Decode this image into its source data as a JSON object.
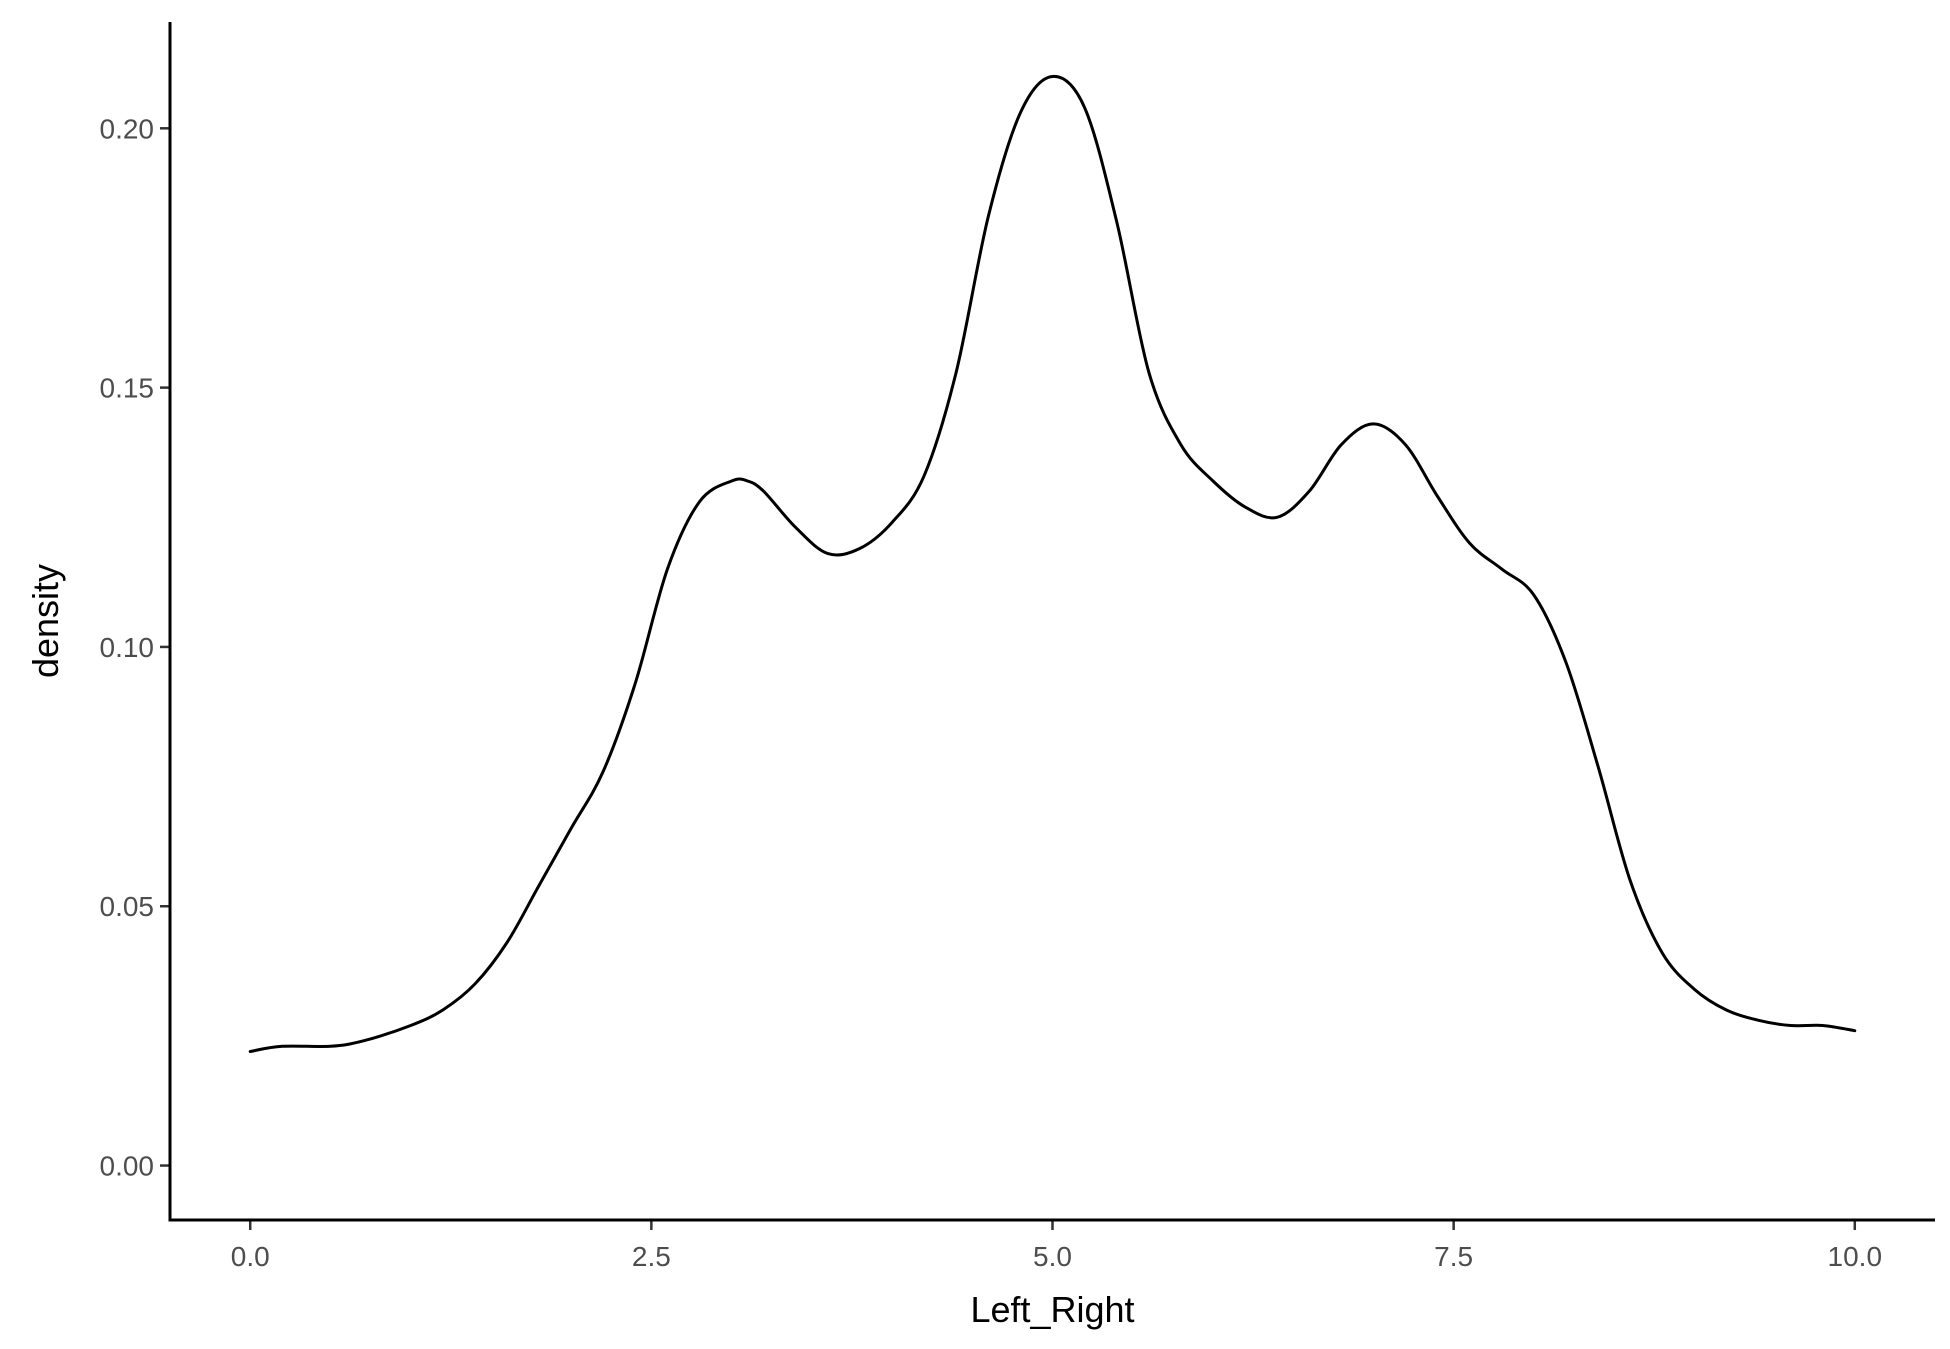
{
  "chart_data": {
    "type": "line",
    "xlabel": "Left_Right",
    "ylabel": "density",
    "xlim": [
      -0.5,
      10.5
    ],
    "ylim": [
      -0.0105,
      0.2205
    ],
    "x_ticks": [
      0.0,
      2.5,
      5.0,
      7.5,
      10.0
    ],
    "x_tick_labels": [
      "0.0",
      "2.5",
      "5.0",
      "7.5",
      "10.0"
    ],
    "y_ticks": [
      0.0,
      0.05,
      0.1,
      0.15,
      0.2
    ],
    "y_tick_labels": [
      "0.00",
      "0.05",
      "0.10",
      "0.15",
      "0.20"
    ],
    "grid": false,
    "line_color": "#000000",
    "series": [
      {
        "x": [
          0.0,
          0.2,
          0.5,
          0.7,
          1.0,
          1.2,
          1.4,
          1.6,
          1.8,
          2.0,
          2.2,
          2.4,
          2.6,
          2.8,
          3.0,
          3.1,
          3.2,
          3.4,
          3.6,
          3.8,
          4.0,
          4.2,
          4.4,
          4.6,
          4.8,
          5.0,
          5.2,
          5.4,
          5.6,
          5.8,
          6.0,
          6.2,
          6.4,
          6.6,
          6.8,
          7.0,
          7.2,
          7.4,
          7.6,
          7.8,
          8.0,
          8.2,
          8.4,
          8.6,
          8.8,
          9.0,
          9.2,
          9.4,
          9.6,
          9.8,
          10.0
        ],
        "y": [
          0.022,
          0.023,
          0.023,
          0.024,
          0.027,
          0.03,
          0.035,
          0.043,
          0.054,
          0.065,
          0.076,
          0.093,
          0.115,
          0.128,
          0.132,
          0.132,
          0.13,
          0.123,
          0.118,
          0.119,
          0.124,
          0.133,
          0.153,
          0.183,
          0.203,
          0.21,
          0.204,
          0.182,
          0.153,
          0.139,
          0.132,
          0.127,
          0.125,
          0.13,
          0.139,
          0.143,
          0.139,
          0.129,
          0.12,
          0.115,
          0.11,
          0.097,
          0.077,
          0.055,
          0.041,
          0.034,
          0.03,
          0.028,
          0.027,
          0.027,
          0.026
        ]
      }
    ]
  }
}
